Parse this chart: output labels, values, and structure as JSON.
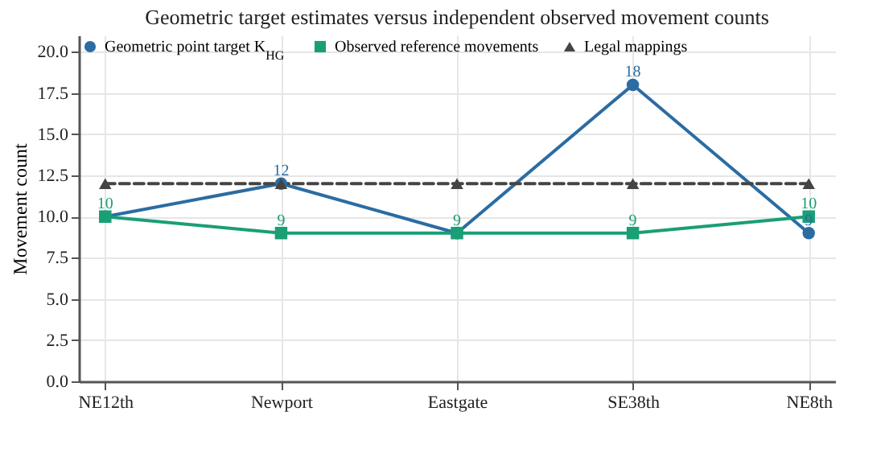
{
  "chart_data": {
    "type": "line",
    "title": "Geometric target estimates versus independent observed movement counts",
    "ylabel": "Movement count",
    "categories": [
      "NE12th",
      "Newport",
      "Eastgate",
      "SE38th",
      "NE8th"
    ],
    "series": [
      {
        "name": "Geometric point target K$_{HG}$",
        "color": "#2b6ca3",
        "marker": "circle",
        "line_style": "solid",
        "values": [
          10,
          12,
          9,
          18,
          9
        ],
        "value_labels": [
          null,
          "12",
          null,
          "18",
          "9"
        ]
      },
      {
        "name": "Observed reference movements",
        "color": "#1a9e76",
        "marker": "square",
        "line_style": "solid",
        "values": [
          10,
          9,
          9,
          9,
          10
        ],
        "value_labels": [
          "10",
          "9",
          "9",
          "9",
          "10"
        ]
      },
      {
        "name": "Legal mappings",
        "color": "#444444",
        "marker": "triangle",
        "line_style": "dashed",
        "values": [
          12,
          12,
          12,
          12,
          12
        ]
      }
    ],
    "ylim": [
      0,
      21
    ],
    "yticks": [
      {
        "value": 0,
        "label": "0.0"
      },
      {
        "value": 2.5,
        "label": "2.5"
      },
      {
        "value": 5,
        "label": "5.0"
      },
      {
        "value": 7.5,
        "label": "7.5"
      },
      {
        "value": 10,
        "label": "10.0"
      },
      {
        "value": 12.5,
        "label": "12.5"
      },
      {
        "value": 15,
        "label": "15.0"
      },
      {
        "value": 17.5,
        "label": "17.5"
      },
      {
        "value": 20,
        "label": "20.0"
      }
    ],
    "grid": true,
    "legend": "top left"
  }
}
